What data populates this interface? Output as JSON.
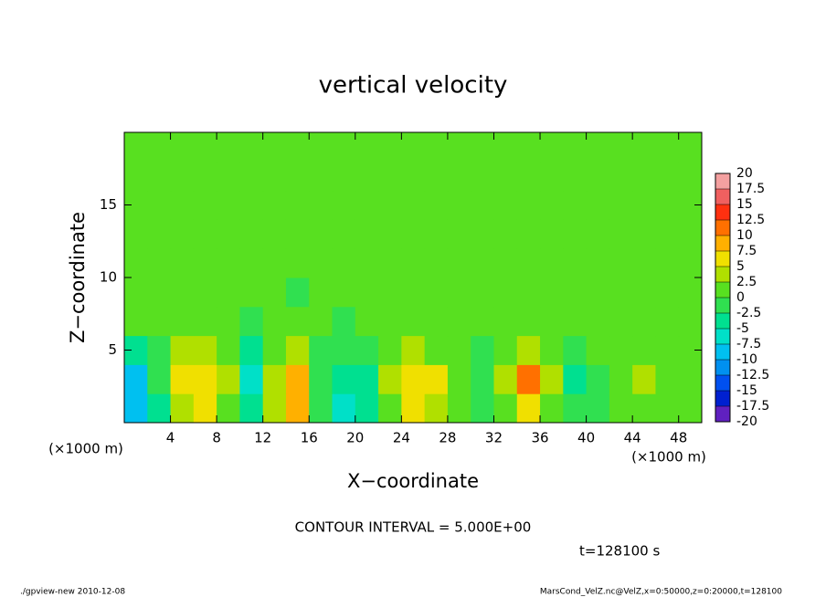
{
  "chart_data": {
    "type": "contour",
    "title": "vertical velocity",
    "xlabel": "X−coordinate",
    "ylabel": "Z−coordinate",
    "x_unit_label": "(×1000 m)",
    "z_unit_label": "(×1000 m)",
    "contour_interval": "CONTOUR INTERVAL = 5.000E+00",
    "time_label": "t=128100 s",
    "footer_left": "./gpview-new  2010-12-08",
    "footer_right": "MarsCond_VelZ.nc@VelZ,x=0:50000,z=0:20000,t=128100",
    "xlim": [
      0,
      50
    ],
    "ylim": [
      0,
      20
    ],
    "xticks": [
      4,
      8,
      12,
      16,
      20,
      24,
      28,
      32,
      36,
      40,
      44,
      48
    ],
    "yticks": [
      5,
      10,
      15
    ],
    "x": [
      1,
      3,
      5,
      7,
      9,
      11,
      13,
      15,
      17,
      19,
      21,
      23,
      25,
      27,
      29,
      31,
      33,
      35,
      37,
      39,
      41,
      43,
      45,
      47,
      49
    ],
    "z": [
      1,
      3,
      5,
      7,
      9,
      11,
      13,
      15,
      17,
      19
    ],
    "values": [
      [
        -8,
        -3,
        3,
        5,
        2,
        -5,
        3,
        8,
        -1,
        -6,
        -3,
        2,
        5,
        3,
        0,
        -1,
        2,
        6,
        2,
        -2,
        -1,
        1,
        2,
        1,
        0
      ],
      [
        -9,
        -2,
        5,
        7,
        3,
        -6,
        4,
        9,
        -2,
        -5,
        -4,
        3,
        7,
        5,
        0,
        -2,
        4,
        11,
        3,
        -3,
        -2,
        2,
        3,
        2,
        1
      ],
      [
        -3,
        -1,
        3,
        4,
        1,
        -3,
        2,
        3,
        -1,
        -2,
        -1,
        2,
        4,
        2,
        0,
        -1,
        2,
        3,
        1,
        -1,
        0,
        1,
        2,
        1,
        0
      ],
      [
        0,
        1,
        1,
        1,
        0,
        -1,
        1,
        1,
        0,
        -1,
        0,
        1,
        1,
        1,
        0,
        0,
        1,
        1,
        0,
        0,
        0,
        1,
        1,
        1,
        0
      ],
      [
        1,
        0,
        1,
        0,
        1,
        0,
        1,
        -1,
        1,
        0,
        1,
        0,
        1,
        0,
        1,
        0,
        1,
        0,
        0,
        1,
        0,
        1,
        0,
        1,
        0
      ],
      [
        0,
        1,
        0,
        1,
        1,
        0,
        0,
        1,
        0,
        1,
        0,
        1,
        1,
        0,
        1,
        1,
        0,
        1,
        0,
        0,
        1,
        0,
        1,
        1,
        0
      ],
      [
        1,
        0,
        1,
        0,
        0,
        1,
        0,
        1,
        1,
        0,
        0,
        1,
        0,
        1,
        0,
        0,
        1,
        1,
        0,
        1,
        1,
        0,
        0,
        1,
        1
      ],
      [
        0,
        1,
        1,
        1,
        1,
        0,
        1,
        1,
        1,
        0,
        1,
        1,
        0,
        1,
        1,
        1,
        0,
        1,
        0,
        1,
        1,
        1,
        0,
        0,
        1
      ],
      [
        1,
        1,
        1,
        0,
        1,
        1,
        1,
        1,
        0,
        1,
        1,
        1,
        1,
        0,
        1,
        1,
        1,
        0,
        1,
        1,
        1,
        1,
        0,
        1,
        1
      ],
      [
        1,
        1,
        1,
        1,
        0,
        1,
        1,
        1,
        1,
        1,
        0,
        1,
        1,
        1,
        1,
        0,
        1,
        1,
        1,
        1,
        0,
        1,
        1,
        1,
        1
      ]
    ],
    "levels": [
      20,
      17.5,
      15,
      12.5,
      10,
      7.5,
      5,
      2.5,
      0,
      -2.5,
      -5,
      -7.5,
      -10,
      -12.5,
      -15,
      -17.5,
      -20
    ],
    "colors": [
      "#f4a0a0",
      "#f06060",
      "#ff3010",
      "#ff7000",
      "#ffb000",
      "#f0e000",
      "#b0e000",
      "#58e020",
      "#30e050",
      "#00e090",
      "#00e0c8",
      "#00c0f0",
      "#0090f0",
      "#0050f0",
      "#0020d0",
      "#6020c0"
    ]
  }
}
